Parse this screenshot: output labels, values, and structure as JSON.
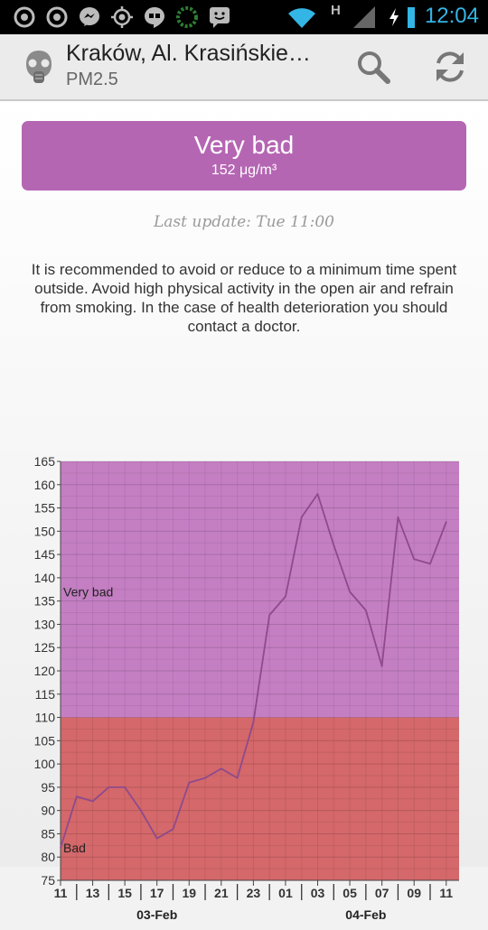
{
  "status_bar": {
    "time": "12:04",
    "network_type": "H",
    "icons": [
      "spinner-icon",
      "spinner-icon",
      "messenger-icon",
      "gps-icon",
      "hangouts-icon",
      "ring-icon",
      "chat-icon",
      "wifi-icon",
      "signal-icon",
      "charging-icon",
      "battery-icon"
    ]
  },
  "header": {
    "title": "Kraków, Al. Krasińskie…",
    "subtitle": "PM2.5",
    "icons": [
      "gas-mask-icon",
      "search-icon",
      "refresh-icon"
    ]
  },
  "banner": {
    "level": "Very bad",
    "value": "152 μg/m³",
    "color": "#b566b3"
  },
  "last_update": "Last update: Tue 11:00",
  "advice": "It is recommended to avoid or reduce to a minimum time spent outside. Avoid high physical activity in the open air and refrain from smoking. In the case of health deterioration you should contact a doctor.",
  "chart_data": {
    "type": "line",
    "ylim": [
      75,
      165
    ],
    "y_ticks": [
      75,
      80,
      85,
      90,
      95,
      100,
      105,
      110,
      115,
      120,
      125,
      130,
      135,
      140,
      145,
      150,
      155,
      160,
      165
    ],
    "x_tick_labels": [
      "11",
      "13",
      "15",
      "17",
      "19",
      "21",
      "23",
      "01",
      "03",
      "05",
      "07",
      "09",
      "11"
    ],
    "x_tick_hours": [
      0,
      2,
      4,
      6,
      8,
      10,
      12,
      14,
      16,
      18,
      20,
      22,
      24
    ],
    "date_labels": [
      {
        "text": "03-Feb",
        "hour": 6
      },
      {
        "text": "04-Feb",
        "hour": 19
      }
    ],
    "xlim": [
      0,
      24.8
    ],
    "bands": [
      {
        "label": "Bad",
        "from": 75,
        "to": 110,
        "color": "#d4686a"
      },
      {
        "label": "Very bad",
        "from": 110,
        "to": 165,
        "color": "#c47fc3"
      }
    ],
    "grid": true,
    "series": [
      {
        "line_color": "#8e4a8c",
        "x": [
          0,
          1,
          2,
          3,
          4,
          5,
          6,
          7,
          8,
          9,
          10,
          11,
          12,
          13,
          14,
          15,
          16,
          17,
          18,
          19,
          20,
          21,
          22,
          23,
          24
        ],
        "values": [
          82,
          93,
          92,
          95,
          95,
          90,
          84,
          86,
          96,
          97,
          99,
          97,
          109,
          132,
          136,
          153,
          158,
          147,
          137,
          133,
          121,
          153,
          144,
          143,
          152
        ]
      }
    ]
  }
}
